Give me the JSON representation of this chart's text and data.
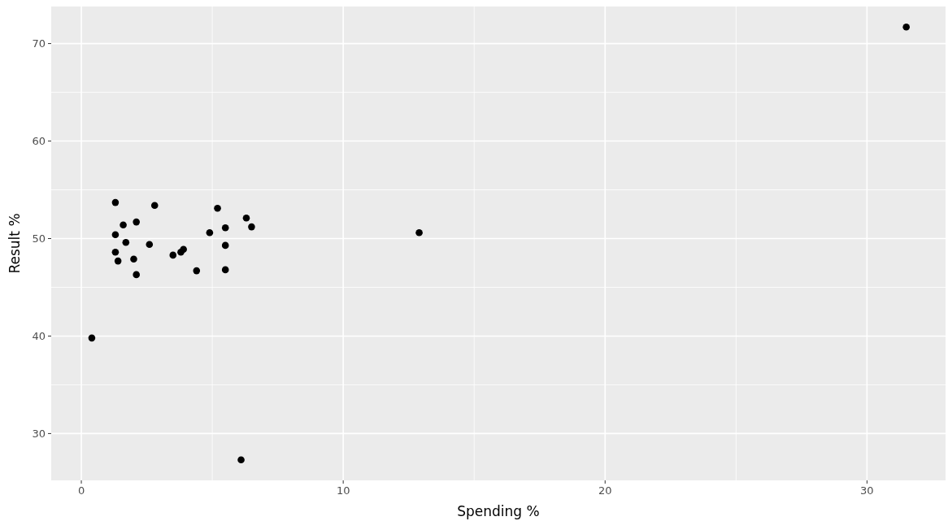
{
  "chart_data": {
    "type": "scatter",
    "xlabel": "Spending %",
    "ylabel": "Result %",
    "x": [
      31.5,
      0.4,
      6.1,
      12.9,
      1.3,
      2.8,
      5.2,
      6.3,
      6.5,
      5.5,
      2.1,
      1.6,
      1.3,
      4.9,
      1.7,
      2.6,
      5.5,
      1.3,
      3.9,
      3.8,
      3.5,
      2.0,
      1.4,
      4.4,
      5.5,
      2.1
    ],
    "values": [
      71.7,
      39.8,
      27.3,
      50.6,
      53.7,
      53.4,
      53.1,
      52.1,
      51.2,
      51.1,
      51.7,
      51.4,
      50.4,
      50.6,
      49.6,
      49.4,
      49.3,
      48.6,
      48.9,
      48.6,
      48.3,
      47.9,
      47.7,
      46.7,
      46.8,
      46.3
    ],
    "color": "#000000",
    "marker": "circle",
    "xlim": [
      -1.15,
      33
    ],
    "ylim": [
      25.2,
      73.8
    ],
    "xticks": [
      0,
      {
        "value": 5,
        "label": null
      },
      10,
      {
        "value": 15,
        "label": null
      },
      20,
      {
        "value": 25,
        "label": null
      },
      30
    ],
    "yticks": [
      30,
      {
        "value": 35,
        "label": null
      },
      40,
      {
        "value": 45,
        "label": null
      },
      50,
      {
        "value": 55,
        "label": null
      },
      60,
      {
        "value": 65,
        "label": null
      },
      70
    ],
    "grid": true
  }
}
